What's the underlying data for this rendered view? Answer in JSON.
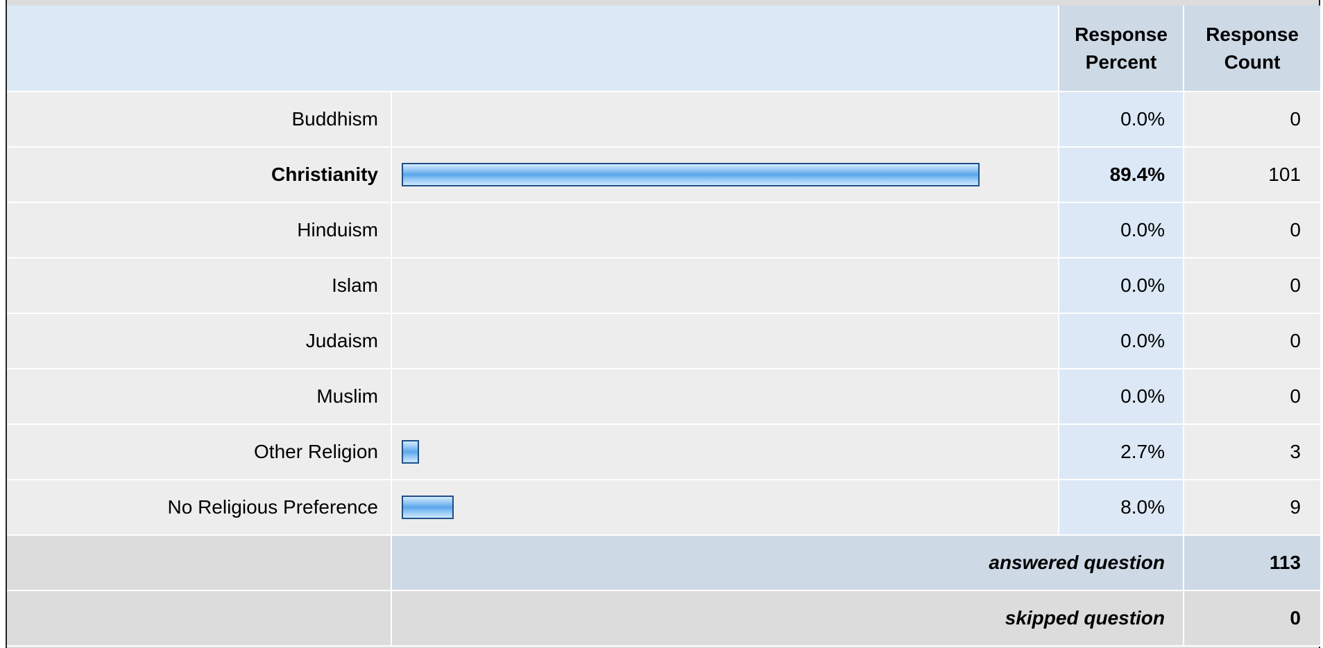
{
  "columns": {
    "percent_label": "Response Percent",
    "count_label": "Response Count"
  },
  "colors": {
    "bar_fill": "#5aa6ea",
    "bar_border": "#1d4f86",
    "header_bg": "#dce8f5"
  },
  "chart_data": {
    "type": "bar",
    "orientation": "horizontal",
    "categories": [
      "Buddhism",
      "Christianity",
      "Hinduism",
      "Islam",
      "Judaism",
      "Muslim",
      "Other Religion",
      "No Religious Preference"
    ],
    "values": [
      0.0,
      89.4,
      0.0,
      0.0,
      0.0,
      0.0,
      2.7,
      8.0
    ],
    "counts": [
      0,
      101,
      0,
      0,
      0,
      0,
      3,
      9
    ],
    "ylim": [
      0,
      100
    ],
    "highlight": "Christianity"
  },
  "rows": [
    {
      "label": "Buddhism",
      "percent": "0.0%",
      "count": "0"
    },
    {
      "label": "Christianity",
      "percent": "89.4%",
      "count": "101"
    },
    {
      "label": "Hinduism",
      "percent": "0.0%",
      "count": "0"
    },
    {
      "label": "Islam",
      "percent": "0.0%",
      "count": "0"
    },
    {
      "label": "Judaism",
      "percent": "0.0%",
      "count": "0"
    },
    {
      "label": "Muslim",
      "percent": "0.0%",
      "count": "0"
    },
    {
      "label": "Other Religion",
      "percent": "2.7%",
      "count": "3"
    },
    {
      "label": "No Religious Preference",
      "percent": "8.0%",
      "count": "9"
    }
  ],
  "summary": {
    "answered_label": "answered question",
    "answered_value": "113",
    "skipped_label": "skipped question",
    "skipped_value": "0"
  }
}
